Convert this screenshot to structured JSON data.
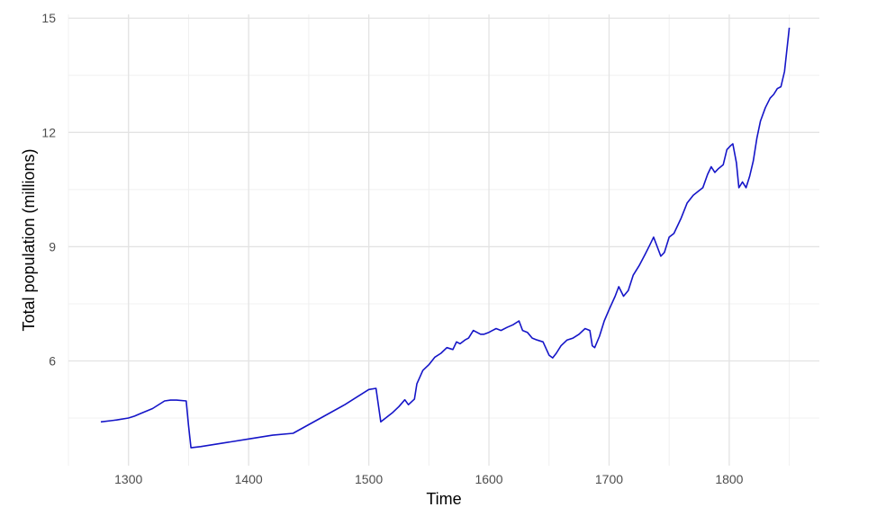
{
  "chart_data": {
    "type": "line",
    "title": "",
    "xlabel": "Time",
    "ylabel": "Total population (millions)",
    "xlim": [
      1250,
      1875
    ],
    "ylim": [
      3.25,
      15.1
    ],
    "x_ticks": [
      1300,
      1400,
      1500,
      1600,
      1700,
      1800
    ],
    "y_ticks": [
      6,
      9,
      12,
      15
    ],
    "grid": true,
    "line_color": "#1515c8",
    "series": [
      {
        "x": [
          1277,
          1290,
          1300,
          1305,
          1310,
          1320,
          1330,
          1335,
          1340,
          1348,
          1350,
          1352,
          1360,
          1380,
          1400,
          1420,
          1437,
          1460,
          1480,
          1490,
          1500,
          1506,
          1510,
          1520,
          1525,
          1530,
          1533,
          1538,
          1540,
          1545,
          1550,
          1555,
          1560,
          1565,
          1570,
          1573,
          1576,
          1580,
          1583,
          1587,
          1590,
          1593,
          1596,
          1600,
          1603,
          1606,
          1610,
          1615,
          1620,
          1625,
          1628,
          1632,
          1636,
          1640,
          1645,
          1650,
          1653,
          1656,
          1660,
          1665,
          1670,
          1675,
          1680,
          1684,
          1686,
          1688,
          1692,
          1696,
          1700,
          1705,
          1708,
          1712,
          1716,
          1720,
          1725,
          1730,
          1734,
          1737,
          1740,
          1743,
          1746,
          1750,
          1754,
          1757,
          1760,
          1765,
          1770,
          1774,
          1778,
          1782,
          1785,
          1788,
          1791,
          1795,
          1798,
          1801,
          1803,
          1806,
          1808,
          1811,
          1814,
          1817,
          1820,
          1823,
          1826,
          1830,
          1834,
          1837,
          1840,
          1843,
          1846,
          1850
        ],
        "y": [
          4.4,
          4.45,
          4.5,
          4.55,
          4.62,
          4.75,
          4.95,
          4.97,
          4.97,
          4.95,
          4.3,
          3.72,
          3.75,
          3.85,
          3.95,
          4.05,
          4.1,
          4.5,
          4.85,
          5.05,
          5.25,
          5.28,
          4.4,
          4.65,
          4.8,
          4.98,
          4.85,
          5.0,
          5.4,
          5.75,
          5.9,
          6.1,
          6.2,
          6.35,
          6.3,
          6.5,
          6.45,
          6.55,
          6.6,
          6.8,
          6.75,
          6.7,
          6.7,
          6.75,
          6.8,
          6.85,
          6.8,
          6.88,
          6.95,
          7.05,
          6.8,
          6.75,
          6.6,
          6.55,
          6.5,
          6.15,
          6.08,
          6.2,
          6.4,
          6.55,
          6.6,
          6.7,
          6.85,
          6.8,
          6.4,
          6.35,
          6.65,
          7.05,
          7.35,
          7.7,
          7.95,
          7.7,
          7.85,
          8.25,
          8.5,
          8.8,
          9.05,
          9.25,
          9.0,
          8.75,
          8.85,
          9.25,
          9.35,
          9.55,
          9.75,
          10.15,
          10.35,
          10.45,
          10.55,
          10.9,
          11.1,
          10.95,
          11.05,
          11.15,
          11.55,
          11.65,
          11.7,
          11.2,
          10.55,
          10.7,
          10.55,
          10.85,
          11.25,
          11.85,
          12.3,
          12.65,
          12.9,
          13.0,
          13.15,
          13.2,
          13.6,
          14.75
        ]
      }
    ]
  }
}
